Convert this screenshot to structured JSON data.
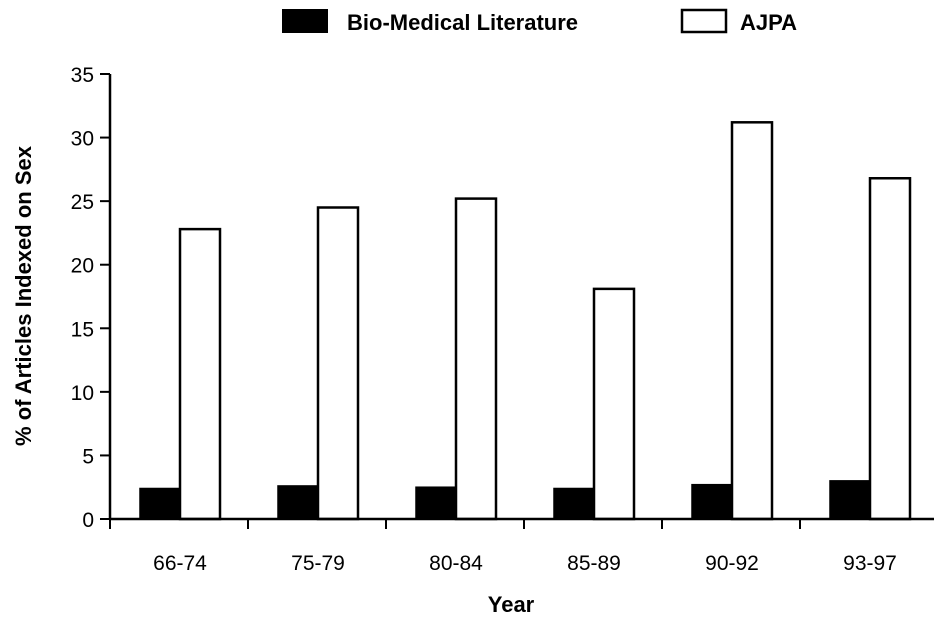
{
  "chart_data": {
    "type": "bar",
    "title": "",
    "xlabel": "Year",
    "ylabel": "% of Articles Indexed on Sex",
    "categories": [
      "66-74",
      "75-79",
      "80-84",
      "85-89",
      "90-92",
      "93-97"
    ],
    "series": [
      {
        "name": "Bio-Medical Literature",
        "color": "#000000",
        "values": [
          2.4,
          2.6,
          2.5,
          2.4,
          2.7,
          3.0
        ]
      },
      {
        "name": "AJPA",
        "color": "#ffffff",
        "values": [
          22.8,
          24.5,
          25.2,
          18.1,
          31.2,
          26.8
        ]
      }
    ],
    "ylim": [
      0,
      35
    ],
    "yticks": [
      0,
      5,
      10,
      15,
      20,
      25,
      30,
      35
    ],
    "grid": false,
    "legend_position": "top"
  }
}
